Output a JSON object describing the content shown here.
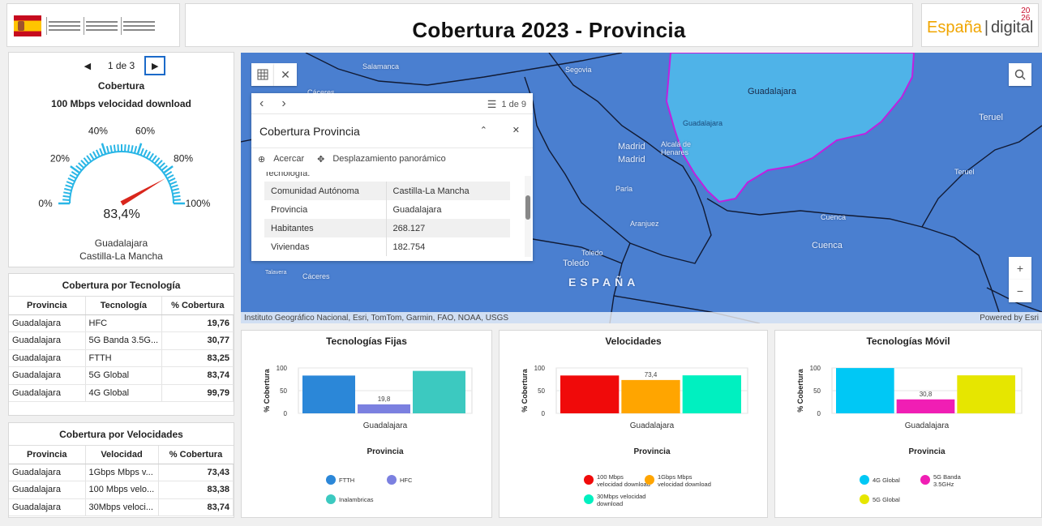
{
  "header": {
    "title": "Cobertura 2023 - Provincia",
    "ed_logo": {
      "espana": "España",
      "digital": "digital",
      "year_top": "20",
      "year_bottom": "26"
    }
  },
  "gauge": {
    "pager": {
      "prev": "◀",
      "label": "1 de 3",
      "next": "▶"
    },
    "title": "Cobertura",
    "subtitle": "100 Mbps velocidad download",
    "value": 83.4,
    "value_label": "83,4%",
    "ticks": [
      "0%",
      "20%",
      "40%",
      "60%",
      "80%",
      "100%"
    ],
    "province": "Guadalajara",
    "region": "Castilla-La Mancha",
    "accent": "#29b6e6",
    "needle": "#d9261c"
  },
  "table_tecnologia": {
    "title": "Cobertura por Tecnología",
    "headers": [
      "Provincia",
      "Tecnología",
      "% Cobertura"
    ],
    "rows": [
      [
        "Guadalajara",
        "HFC",
        "19,76"
      ],
      [
        "Guadalajara",
        "5G Banda 3.5G...",
        "30,77"
      ],
      [
        "Guadalajara",
        "FTTH",
        "83,25"
      ],
      [
        "Guadalajara",
        "5G Global",
        "83,74"
      ],
      [
        "Guadalajara",
        "4G Global",
        "99,79"
      ]
    ]
  },
  "table_velocidades": {
    "title": "Cobertura por Velocidades",
    "headers": [
      "Provincia",
      "Velocidad",
      "% Cobertura"
    ],
    "rows": [
      [
        "Guadalajara",
        "1Gbps Mbps v...",
        "73,43"
      ],
      [
        "Guadalajara",
        "100 Mbps velo...",
        "83,38"
      ],
      [
        "Guadalajara",
        "30Mbps veloci...",
        "83,74"
      ]
    ]
  },
  "map": {
    "labels": [
      "Salamanca",
      "Segovia",
      "Cáceres",
      "Guadalajara",
      "Guadalajara",
      "Madrid",
      "Madrid",
      "Alcalá de",
      "Henares",
      "Parla",
      "Aranjuez",
      "Toledo",
      "Toledo",
      "Teruel",
      "Teruel",
      "Cuenca",
      "Cuenca",
      "ESPAÑA",
      "Cáceres",
      "Talavera"
    ],
    "attribution": "Instituto Geográfico Nacional, Esri, TomTom, Garmin, FAO, NOAA, USGS",
    "powered": "Powered by Esri",
    "zoom_in": "+",
    "zoom_out": "−",
    "search_icon": "search-icon",
    "base_color": "#4a7fd0",
    "highlight_color": "#4fb3e8"
  },
  "popup": {
    "prev": "‹",
    "next": "›",
    "count": "1 de 9",
    "title": "Cobertura Provincia",
    "zoom_label": "Acercar",
    "pan_label": "Desplazamiento panorámico",
    "section_label": "Tecnología:",
    "rows": [
      [
        "Comunidad Autónoma",
        "Castilla-La Mancha"
      ],
      [
        "Provincia",
        "Guadalajara"
      ],
      [
        "Habitantes",
        "268.127"
      ],
      [
        "Viviendas",
        "182.754"
      ]
    ]
  },
  "chart_data": [
    {
      "type": "bar",
      "title": "Tecnologías Fijas",
      "xlabel": "Provincia",
      "ylabel": "% Cobertura",
      "categories": [
        "Guadalajara"
      ],
      "ylim": [
        0,
        100
      ],
      "yticks": [
        "0",
        "50",
        "100"
      ],
      "series": [
        {
          "name": "FTTH",
          "values": [
            83.25
          ],
          "color": "#2b87d8",
          "label": ""
        },
        {
          "name": "HFC",
          "values": [
            19.76
          ],
          "color": "#7b80e0",
          "label": "19,8"
        },
        {
          "name": "Inalambricas",
          "values": [
            93.5
          ],
          "color": "#3cc9c0",
          "label": ""
        }
      ]
    },
    {
      "type": "bar",
      "title": "Velocidades",
      "xlabel": "Provincia",
      "ylabel": "% Cobertura",
      "categories": [
        "Guadalajara"
      ],
      "ylim": [
        0,
        100
      ],
      "yticks": [
        "0",
        "50",
        "100"
      ],
      "series": [
        {
          "name": "100 Mbps velocidad download",
          "values": [
            83.38
          ],
          "color": "#f00a0a",
          "label": ""
        },
        {
          "name": "1Gbps Mbps velocidad download",
          "values": [
            73.43
          ],
          "color": "#ffa500",
          "label": "73,4"
        },
        {
          "name": "30Mbps velocidad download",
          "values": [
            83.74
          ],
          "color": "#00f0c0",
          "label": ""
        }
      ]
    },
    {
      "type": "bar",
      "title": "Tecnologías Móvil",
      "xlabel": "Provincia",
      "ylabel": "% Cobertura",
      "categories": [
        "Guadalajara"
      ],
      "ylim": [
        0,
        100
      ],
      "yticks": [
        "0",
        "50",
        "100"
      ],
      "series": [
        {
          "name": "4G Global",
          "values": [
            99.79
          ],
          "color": "#00c8f5",
          "label": ""
        },
        {
          "name": "5G Banda 3.5GHz",
          "values": [
            30.77
          ],
          "color": "#f01eb4",
          "label": "30,8"
        },
        {
          "name": "5G Global",
          "values": [
            83.74
          ],
          "color": "#e6e600",
          "label": ""
        }
      ]
    }
  ]
}
